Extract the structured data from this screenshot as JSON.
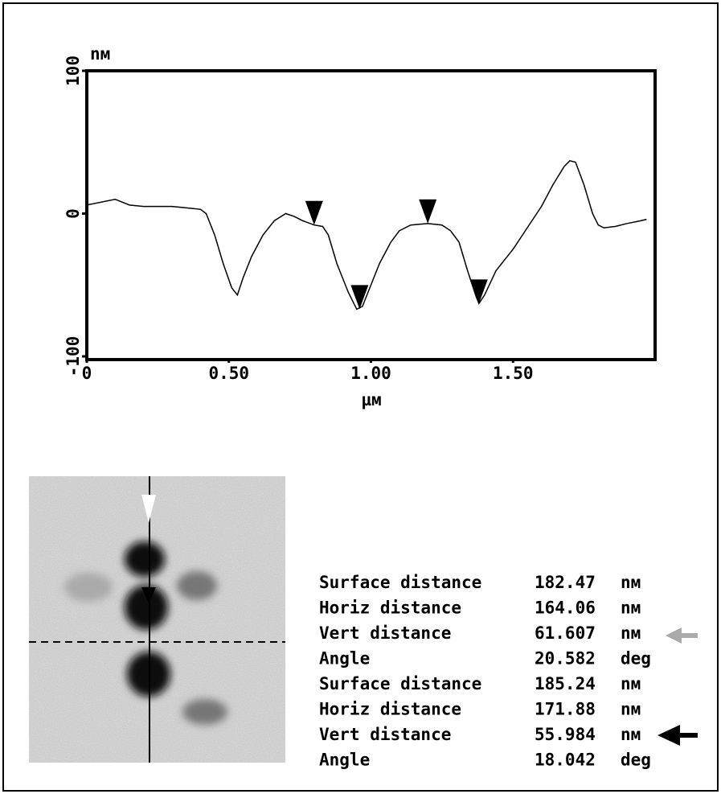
{
  "chart_data": {
    "type": "line",
    "y_unit": "nм",
    "x_label": "µм",
    "x": [
      0,
      0.1,
      0.15,
      0.2,
      0.3,
      0.35,
      0.4,
      0.42,
      0.45,
      0.48,
      0.51,
      0.53,
      0.55,
      0.58,
      0.62,
      0.66,
      0.7,
      0.73,
      0.76,
      0.8,
      0.83,
      0.85,
      0.88,
      0.92,
      0.95,
      0.97,
      1.0,
      1.03,
      1.07,
      1.1,
      1.14,
      1.2,
      1.25,
      1.28,
      1.31,
      1.34,
      1.37,
      1.38,
      1.4,
      1.44,
      1.5,
      1.55,
      1.6,
      1.64,
      1.68,
      1.7,
      1.72,
      1.75,
      1.78,
      1.8,
      1.82,
      1.86,
      1.9,
      1.95,
      1.97
    ],
    "values": [
      6,
      10,
      6,
      5,
      5,
      4,
      3,
      0,
      -15,
      -35,
      -52,
      -57,
      -45,
      -30,
      -15,
      -5,
      0,
      -2,
      -5,
      -8,
      -9,
      -15,
      -35,
      -55,
      -67,
      -65,
      -50,
      -35,
      -20,
      -12,
      -8,
      -7,
      -8,
      -12,
      -20,
      -40,
      -58,
      -63,
      -57,
      -40,
      -25,
      -10,
      5,
      20,
      33,
      37,
      36,
      20,
      0,
      -8,
      -10,
      -9,
      -7,
      -5,
      -4
    ],
    "color": "#000000",
    "markers": {
      "x": [
        0.8,
        1.2,
        0.96,
        1.38
      ],
      "y": [
        -8,
        -7,
        -67,
        -63
      ],
      "color": "#000000"
    },
    "xlim": [
      0,
      2.0
    ],
    "ylim": [
      -100,
      100
    ],
    "xticks": [
      0,
      {
        "value": 0.5,
        "label": "0.50"
      },
      {
        "value": 1.0,
        "label": "1.00"
      },
      {
        "value": 1.5,
        "label": "1.50"
      }
    ],
    "yticks": [
      -100,
      0,
      100
    ]
  },
  "table": {
    "rows": [
      [
        "Surface distance",
        "182.47",
        "nм"
      ],
      [
        "Horiz distance",
        "164.06",
        "nм"
      ],
      [
        "Vert distance",
        "61.607",
        "nм"
      ],
      [
        "Angle",
        "20.582",
        "deg"
      ],
      [
        "Surface distance",
        "185.24",
        "nм"
      ],
      [
        "Horiz distance",
        "171.88",
        "nм"
      ],
      [
        "Vert distance",
        "55.984",
        "nм"
      ],
      [
        "Angle",
        "18.042",
        "deg"
      ]
    ]
  }
}
